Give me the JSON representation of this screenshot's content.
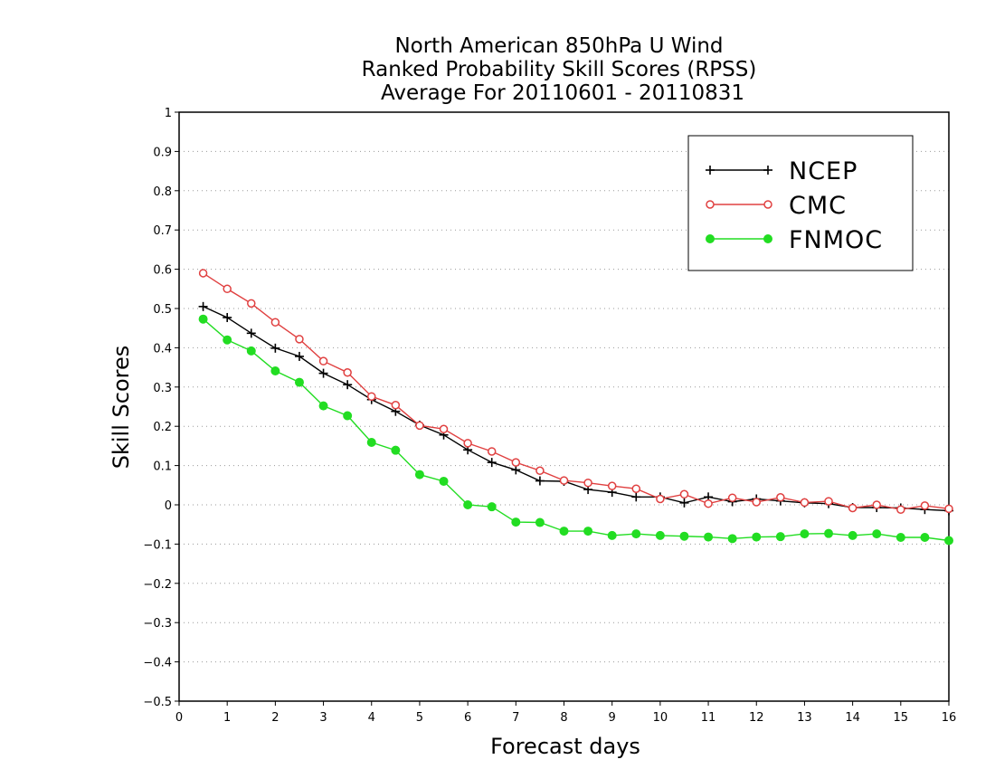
{
  "chart_data": {
    "type": "line",
    "title": [
      "North American 850hPa U Wind",
      "Ranked Probability Skill Scores (RPSS)",
      "Average For 20110601 - 20110831"
    ],
    "xlabel": "Forecast days",
    "ylabel": "Skill Scores",
    "xlim": [
      0,
      16
    ],
    "ylim": [
      -0.5,
      1
    ],
    "xticks": [
      0,
      1,
      2,
      3,
      4,
      5,
      6,
      7,
      8,
      9,
      10,
      11,
      12,
      13,
      14,
      15,
      16
    ],
    "yticks": [
      1,
      0.9,
      0.8,
      0.7,
      0.6,
      0.5,
      0.4,
      0.3,
      0.2,
      0.1,
      0,
      -0.1,
      -0.2,
      -0.3,
      -0.4,
      -0.5
    ],
    "ytick_labels": [
      "1",
      "0.9",
      "0.8",
      "0.7",
      "0.6",
      "0.5",
      "0.4",
      "0.3",
      "0.2",
      "0.1",
      "0",
      "−0.1",
      "−0.2",
      "−0.3",
      "−0.4",
      "−0.5"
    ],
    "grid": true,
    "legend_position": "top-right",
    "x": [
      0.5,
      1,
      1.5,
      2,
      2.5,
      3,
      3.5,
      4,
      4.5,
      5,
      5.5,
      6,
      6.5,
      7,
      7.5,
      8,
      8.5,
      9,
      9.5,
      10,
      10.5,
      11,
      11.5,
      12,
      12.5,
      13,
      13.5,
      14,
      14.5,
      15,
      15.5,
      16
    ],
    "series": [
      {
        "name": "NCEP",
        "color": "#000000",
        "marker": "plus",
        "values": [
          0.505,
          0.477,
          0.437,
          0.399,
          0.378,
          0.335,
          0.306,
          0.268,
          0.238,
          0.203,
          0.178,
          0.14,
          0.108,
          0.089,
          0.061,
          0.06,
          0.039,
          0.032,
          0.02,
          0.02,
          0.005,
          0.02,
          0.008,
          0.015,
          0.01,
          0.005,
          0.003,
          -0.007,
          -0.007,
          -0.008,
          -0.012,
          -0.015
        ]
      },
      {
        "name": "CMC",
        "color": "#e04040",
        "marker": "open-circle",
        "values": [
          0.59,
          0.55,
          0.513,
          0.465,
          0.422,
          0.366,
          0.337,
          0.276,
          0.254,
          0.202,
          0.193,
          0.157,
          0.136,
          0.108,
          0.087,
          0.062,
          0.056,
          0.048,
          0.041,
          0.015,
          0.027,
          0.003,
          0.018,
          0.007,
          0.019,
          0.006,
          0.009,
          -0.008,
          0.0,
          -0.012,
          -0.002,
          -0.01
        ]
      },
      {
        "name": "FNMOC",
        "color": "#22dd22",
        "marker": "filled-circle",
        "values": [
          0.473,
          0.42,
          0.392,
          0.341,
          0.312,
          0.252,
          0.227,
          0.159,
          0.139,
          0.077,
          0.06,
          0.0,
          -0.005,
          -0.044,
          -0.045,
          -0.067,
          -0.067,
          -0.078,
          -0.074,
          -0.078,
          -0.08,
          -0.082,
          -0.086,
          -0.082,
          -0.081,
          -0.074,
          -0.073,
          -0.078,
          -0.074,
          -0.083,
          -0.083,
          -0.091
        ]
      }
    ]
  }
}
